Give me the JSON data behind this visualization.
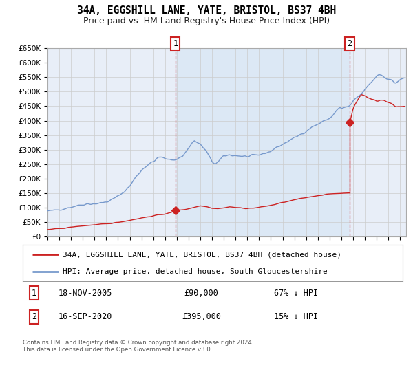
{
  "title": "34A, EGGSHILL LANE, YATE, BRISTOL, BS37 4BH",
  "subtitle": "Price paid vs. HM Land Registry's House Price Index (HPI)",
  "ylim": [
    0,
    650000
  ],
  "yticks": [
    0,
    50000,
    100000,
    150000,
    200000,
    250000,
    300000,
    350000,
    400000,
    450000,
    500000,
    550000,
    600000,
    650000
  ],
  "xlim_start": 1995.0,
  "xlim_end": 2025.5,
  "plot_bg_color": "#e8eef8",
  "highlight_bg_color": "#dce8f5",
  "grid_color": "#cccccc",
  "hpi_color": "#7799cc",
  "price_color": "#cc2222",
  "marker_color": "#cc2222",
  "vline_color": "#dd4444",
  "transaction1_date": 2005.88,
  "transaction1_price": 90000,
  "transaction2_date": 2020.71,
  "transaction2_price": 395000,
  "legend_label_price": "34A, EGGSHILL LANE, YATE, BRISTOL, BS37 4BH (detached house)",
  "legend_label_hpi": "HPI: Average price, detached house, South Gloucestershire",
  "annotation1_date": "18-NOV-2005",
  "annotation1_price": "£90,000",
  "annotation1_hpi": "67% ↓ HPI",
  "annotation2_date": "16-SEP-2020",
  "annotation2_price": "£395,000",
  "annotation2_hpi": "15% ↓ HPI",
  "footer": "Contains HM Land Registry data © Crown copyright and database right 2024.\nThis data is licensed under the Open Government Licence v3.0.",
  "title_fontsize": 10.5,
  "subtitle_fontsize": 9,
  "tick_fontsize": 7.5,
  "legend_fontsize": 8,
  "annot_fontsize": 8.5
}
